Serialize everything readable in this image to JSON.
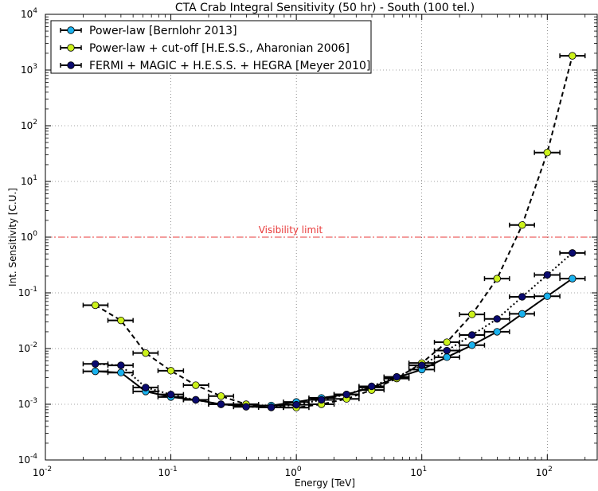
{
  "chart_data": {
    "type": "scatter",
    "title": "CTA Crab Integral Sensitivity (50 hr) - South (100 tel.)",
    "xlabel": "Energy [TeV]",
    "ylabel": "Int. Sensitivity [C.U.]",
    "xscale": "log",
    "yscale": "log",
    "xlim": [
      0.01,
      250
    ],
    "ylim": [
      0.0001,
      10000
    ],
    "grid": true,
    "legend_position": "top-left",
    "x_ticks": [
      {
        "value": 0.01,
        "base": "10",
        "exp": "-2"
      },
      {
        "value": 0.1,
        "base": "10",
        "exp": "-1"
      },
      {
        "value": 1,
        "base": "10",
        "exp": "0"
      },
      {
        "value": 10,
        "base": "10",
        "exp": "1"
      },
      {
        "value": 100,
        "base": "10",
        "exp": "2"
      }
    ],
    "y_ticks": [
      {
        "value": 0.0001,
        "base": "10",
        "exp": "-4"
      },
      {
        "value": 0.001,
        "base": "10",
        "exp": "-3"
      },
      {
        "value": 0.01,
        "base": "10",
        "exp": "-2"
      },
      {
        "value": 0.1,
        "base": "10",
        "exp": "-1"
      },
      {
        "value": 1,
        "base": "10",
        "exp": "0"
      },
      {
        "value": 10,
        "base": "10",
        "exp": "1"
      },
      {
        "value": 100,
        "base": "10",
        "exp": "2"
      },
      {
        "value": 1000,
        "base": "10",
        "exp": "3"
      },
      {
        "value": 10000,
        "base": "10",
        "exp": "4"
      }
    ],
    "reference_line": {
      "y": 1.0,
      "label": "Visibility limit",
      "color": "#e83a3a"
    },
    "series": [
      {
        "name": "Power-law [Bernlohr 2013]",
        "color": "#1ab2ee",
        "line_style": "solid",
        "points": [
          {
            "x": 0.025,
            "y": 0.0039,
            "xlo": 0.02,
            "xhi": 0.0315
          },
          {
            "x": 0.04,
            "y": 0.0037,
            "xlo": 0.0315,
            "xhi": 0.05
          },
          {
            "x": 0.063,
            "y": 0.0017,
            "xlo": 0.05,
            "xhi": 0.079
          },
          {
            "x": 0.1,
            "y": 0.00135,
            "xlo": 0.079,
            "xhi": 0.126
          },
          {
            "x": 0.158,
            "y": 0.0012,
            "xlo": 0.126,
            "xhi": 0.2
          },
          {
            "x": 0.251,
            "y": 0.001,
            "xlo": 0.2,
            "xhi": 0.316
          },
          {
            "x": 0.398,
            "y": 0.00092,
            "xlo": 0.316,
            "xhi": 0.5
          },
          {
            "x": 0.631,
            "y": 0.00095,
            "xlo": 0.5,
            "xhi": 0.79
          },
          {
            "x": 1.0,
            "y": 0.0011,
            "xlo": 0.79,
            "xhi": 1.26
          },
          {
            "x": 1.585,
            "y": 0.0013,
            "xlo": 1.26,
            "xhi": 2.0
          },
          {
            "x": 2.512,
            "y": 0.0015,
            "xlo": 2.0,
            "xhi": 3.16
          },
          {
            "x": 3.981,
            "y": 0.002,
            "xlo": 3.16,
            "xhi": 5.0
          },
          {
            "x": 6.31,
            "y": 0.003,
            "xlo": 5.0,
            "xhi": 7.9
          },
          {
            "x": 10.0,
            "y": 0.0042,
            "xlo": 7.9,
            "xhi": 12.6
          },
          {
            "x": 15.85,
            "y": 0.007,
            "xlo": 12.6,
            "xhi": 20.0
          },
          {
            "x": 25.12,
            "y": 0.0115,
            "xlo": 20.0,
            "xhi": 31.6
          },
          {
            "x": 39.81,
            "y": 0.02,
            "xlo": 31.6,
            "xhi": 50.0
          },
          {
            "x": 63.1,
            "y": 0.042,
            "xlo": 50.0,
            "xhi": 79.0
          },
          {
            "x": 100.0,
            "y": 0.087,
            "xlo": 79.0,
            "xhi": 126.0
          },
          {
            "x": 158.5,
            "y": 0.18,
            "xlo": 126.0,
            "xhi": 200.0
          }
        ]
      },
      {
        "name": "Power-law + cut-off [H.E.S.S., Aharonian 2006]",
        "color": "#ccf21c",
        "line_style": "dashed",
        "points": [
          {
            "x": 0.025,
            "y": 0.06,
            "xlo": 0.02,
            "xhi": 0.0315
          },
          {
            "x": 0.04,
            "y": 0.032,
            "xlo": 0.0315,
            "xhi": 0.05
          },
          {
            "x": 0.063,
            "y": 0.0083,
            "xlo": 0.05,
            "xhi": 0.079
          },
          {
            "x": 0.1,
            "y": 0.004,
            "xlo": 0.079,
            "xhi": 0.126
          },
          {
            "x": 0.158,
            "y": 0.0022,
            "xlo": 0.126,
            "xhi": 0.2
          },
          {
            "x": 0.251,
            "y": 0.0014,
            "xlo": 0.2,
            "xhi": 0.316
          },
          {
            "x": 0.398,
            "y": 0.001,
            "xlo": 0.316,
            "xhi": 0.5
          },
          {
            "x": 0.631,
            "y": 0.00088,
            "xlo": 0.5,
            "xhi": 0.79
          },
          {
            "x": 1.0,
            "y": 0.00087,
            "xlo": 0.79,
            "xhi": 1.26
          },
          {
            "x": 1.585,
            "y": 0.001,
            "xlo": 1.26,
            "xhi": 2.0
          },
          {
            "x": 2.512,
            "y": 0.00125,
            "xlo": 2.0,
            "xhi": 3.16
          },
          {
            "x": 3.981,
            "y": 0.0018,
            "xlo": 3.16,
            "xhi": 5.0
          },
          {
            "x": 6.31,
            "y": 0.0029,
            "xlo": 5.0,
            "xhi": 7.9
          },
          {
            "x": 10.0,
            "y": 0.0055,
            "xlo": 7.9,
            "xhi": 12.6
          },
          {
            "x": 15.85,
            "y": 0.013,
            "xlo": 12.6,
            "xhi": 20.0
          },
          {
            "x": 25.12,
            "y": 0.041,
            "xlo": 20.0,
            "xhi": 31.6
          },
          {
            "x": 39.81,
            "y": 0.18,
            "xlo": 31.6,
            "xhi": 50.0
          },
          {
            "x": 63.1,
            "y": 1.65,
            "xlo": 50.0,
            "xhi": 79.0
          },
          {
            "x": 100.0,
            "y": 33,
            "xlo": 79.0,
            "xhi": 126.0
          },
          {
            "x": 158.5,
            "y": 1800,
            "xlo": 126.0,
            "xhi": 200.0
          }
        ]
      },
      {
        "name": "FERMI + MAGIC + H.E.S.S. + HEGRA [Meyer 2010]",
        "color": "#0a0a6e",
        "line_style": "dotted",
        "points": [
          {
            "x": 0.025,
            "y": 0.0053,
            "xlo": 0.02,
            "xhi": 0.0315
          },
          {
            "x": 0.04,
            "y": 0.005,
            "xlo": 0.0315,
            "xhi": 0.05
          },
          {
            "x": 0.063,
            "y": 0.002,
            "xlo": 0.05,
            "xhi": 0.079
          },
          {
            "x": 0.1,
            "y": 0.0015,
            "xlo": 0.079,
            "xhi": 0.126
          },
          {
            "x": 0.158,
            "y": 0.0012,
            "xlo": 0.126,
            "xhi": 0.2
          },
          {
            "x": 0.251,
            "y": 0.001,
            "xlo": 0.2,
            "xhi": 0.316
          },
          {
            "x": 0.398,
            "y": 0.0009,
            "xlo": 0.316,
            "xhi": 0.5
          },
          {
            "x": 0.631,
            "y": 0.00088,
            "xlo": 0.5,
            "xhi": 0.79
          },
          {
            "x": 1.0,
            "y": 0.00098,
            "xlo": 0.79,
            "xhi": 1.26
          },
          {
            "x": 1.585,
            "y": 0.0012,
            "xlo": 1.26,
            "xhi": 2.0
          },
          {
            "x": 2.512,
            "y": 0.0015,
            "xlo": 2.0,
            "xhi": 3.16
          },
          {
            "x": 3.981,
            "y": 0.0021,
            "xlo": 3.16,
            "xhi": 5.0
          },
          {
            "x": 6.31,
            "y": 0.0031,
            "xlo": 5.0,
            "xhi": 7.9
          },
          {
            "x": 10.0,
            "y": 0.005,
            "xlo": 7.9,
            "xhi": 12.6
          },
          {
            "x": 15.85,
            "y": 0.0092,
            "xlo": 12.6,
            "xhi": 20.0
          },
          {
            "x": 25.12,
            "y": 0.0175,
            "xlo": 20.0,
            "xhi": 31.6
          },
          {
            "x": 39.81,
            "y": 0.034,
            "xlo": 31.6,
            "xhi": 50.0
          },
          {
            "x": 63.1,
            "y": 0.085,
            "xlo": 50.0,
            "xhi": 79.0
          },
          {
            "x": 100.0,
            "y": 0.21,
            "xlo": 79.0,
            "xhi": 126.0
          },
          {
            "x": 158.5,
            "y": 0.52,
            "xlo": 126.0,
            "xhi": 200.0
          }
        ]
      }
    ]
  }
}
